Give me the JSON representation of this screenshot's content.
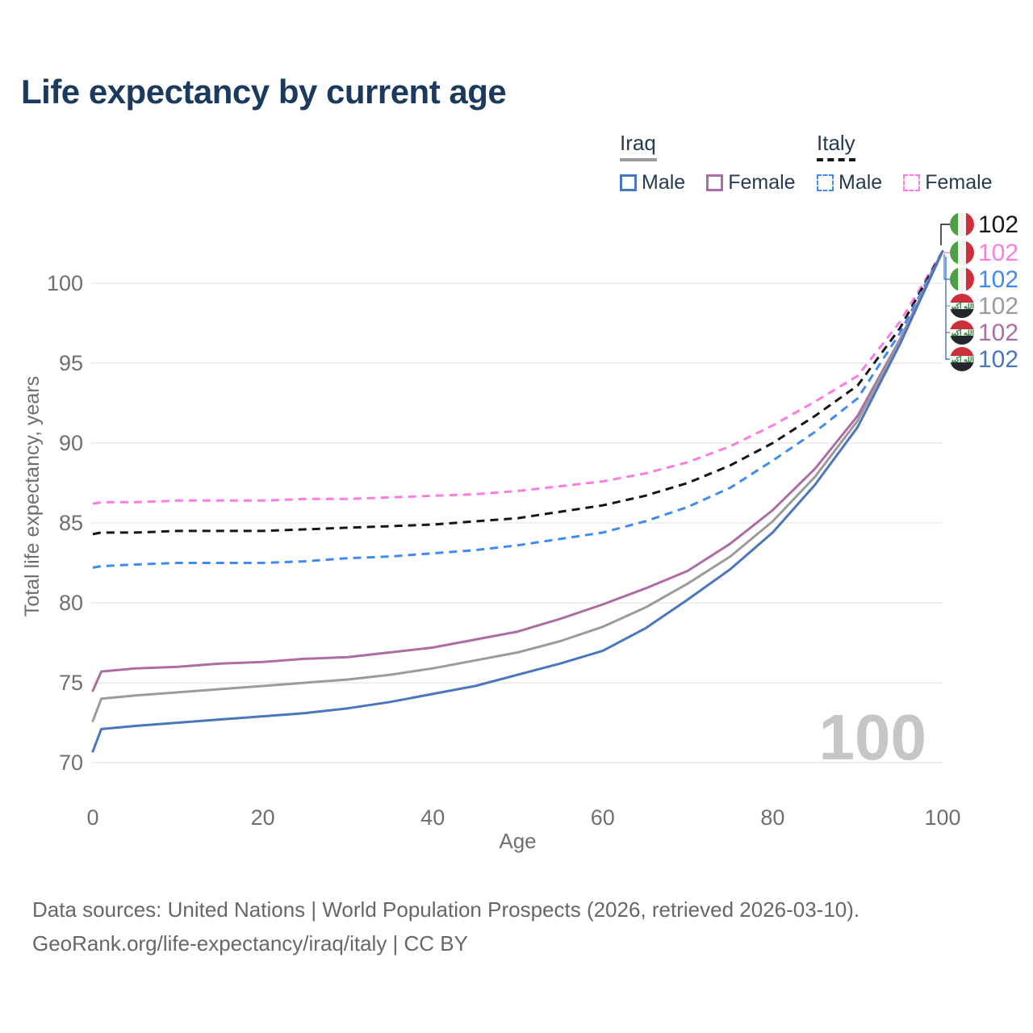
{
  "title": "Life expectancy by current age",
  "legend": {
    "groups": [
      {
        "country": "Iraq",
        "line_style": "solid",
        "underline_color": "#9b9b9b",
        "items": [
          {
            "label": "Male"
          },
          {
            "label": "Female"
          }
        ]
      },
      {
        "country": "Italy",
        "line_style": "dashed",
        "underline_color": "#161616",
        "items": [
          {
            "label": "Male"
          },
          {
            "label": "Female"
          }
        ]
      }
    ]
  },
  "watermark_age": "100",
  "end_labels": [
    {
      "value": "102",
      "flag": "italy-flag-icon",
      "series_index": 5
    },
    {
      "value": "102",
      "flag": "italy-flag-icon",
      "series_index": 4
    },
    {
      "value": "102",
      "flag": "italy-flag-icon",
      "series_index": 3
    },
    {
      "value": "102",
      "flag": "iraq-flag-icon",
      "series_index": 2
    },
    {
      "value": "102",
      "flag": "iraq-flag-icon",
      "series_index": 1
    },
    {
      "value": "102",
      "flag": "iraq-flag-icon",
      "series_index": 0
    }
  ],
  "footer": {
    "line1": "Data sources: United Nations | World Population Prospects (2026, retrieved 2026-03-10).",
    "line2": "GeoRank.org/life-expectancy/iraq/italy | CC BY"
  },
  "colors": {
    "title_text": "#1b3a5e",
    "legend_text": "#263b52",
    "axis_text": "#6f6f6f",
    "gridline": "#eaeaea",
    "watermark": "#c6c6c6",
    "footer_text": "#676767",
    "italy_flag": {
      "green": "#4f9e48",
      "white": "#f2f2ef",
      "red": "#cd2f3c"
    },
    "iraq_flag": {
      "red": "#cd2f3c",
      "white": "#f5f5f3",
      "black": "#23262b",
      "script_green": "#1e7a34"
    }
  },
  "chart_data": {
    "type": "line",
    "title": "Life expectancy by current age",
    "xlabel": "Age",
    "ylabel": "Total life expectancy, years",
    "x_ticks": [
      0,
      20,
      40,
      60,
      80,
      100
    ],
    "y_ticks": [
      70,
      75,
      80,
      85,
      90,
      95,
      100
    ],
    "xlim": [
      0,
      100
    ],
    "ylim": [
      70,
      102
    ],
    "grid": "horizontal",
    "x": [
      0,
      1,
      5,
      10,
      15,
      20,
      25,
      30,
      35,
      40,
      45,
      50,
      55,
      60,
      65,
      70,
      75,
      80,
      85,
      90,
      95,
      100
    ],
    "series": [
      {
        "name": "Iraq Male",
        "country": "Iraq",
        "sex": "male",
        "style": "solid",
        "color": "#4a76bd",
        "values": [
          70.7,
          72.1,
          72.3,
          72.5,
          72.7,
          72.9,
          73.1,
          73.4,
          73.8,
          74.3,
          74.8,
          75.5,
          76.2,
          77.0,
          78.4,
          80.2,
          82.1,
          84.4,
          87.4,
          91.0,
          96.2,
          102
        ]
      },
      {
        "name": "Iraq Female",
        "country": "Iraq",
        "sex": "female",
        "style": "solid",
        "color": "#ad6ca4",
        "values": [
          74.5,
          75.7,
          75.9,
          76.0,
          76.2,
          76.3,
          76.5,
          76.6,
          76.9,
          77.2,
          77.7,
          78.2,
          79.0,
          79.9,
          80.9,
          82.0,
          83.7,
          85.8,
          88.4,
          91.7,
          96.5,
          102
        ]
      },
      {
        "name": "Iraq Total",
        "country": "Iraq",
        "sex": "total",
        "style": "solid",
        "color": "#9b9b9b",
        "values": [
          72.6,
          74.0,
          74.2,
          74.4,
          74.6,
          74.8,
          75.0,
          75.2,
          75.5,
          75.9,
          76.4,
          76.9,
          77.6,
          78.5,
          79.7,
          81.2,
          82.9,
          85.1,
          87.9,
          91.4,
          96.4,
          102
        ]
      },
      {
        "name": "Italy Male",
        "country": "Italy",
        "sex": "male",
        "style": "dashed",
        "color": "#418bf0",
        "values": [
          82.2,
          82.3,
          82.4,
          82.5,
          82.5,
          82.5,
          82.6,
          82.8,
          82.9,
          83.1,
          83.3,
          83.6,
          84.0,
          84.4,
          85.1,
          86.0,
          87.2,
          88.9,
          90.7,
          92.8,
          96.9,
          102
        ]
      },
      {
        "name": "Italy Female",
        "country": "Italy",
        "sex": "female",
        "style": "dashed",
        "color": "#fb7de2",
        "values": [
          86.2,
          86.3,
          86.3,
          86.4,
          86.4,
          86.4,
          86.5,
          86.5,
          86.6,
          86.7,
          86.8,
          87.0,
          87.3,
          87.6,
          88.1,
          88.8,
          89.8,
          91.1,
          92.6,
          94.2,
          97.6,
          102
        ]
      },
      {
        "name": "Italy Total",
        "country": "Italy",
        "sex": "total",
        "style": "dashed",
        "color": "#161616",
        "values": [
          84.3,
          84.4,
          84.4,
          84.5,
          84.5,
          84.5,
          84.6,
          84.7,
          84.8,
          84.9,
          85.1,
          85.3,
          85.7,
          86.1,
          86.7,
          87.5,
          88.6,
          90.0,
          91.7,
          93.6,
          97.2,
          102
        ]
      }
    ]
  }
}
